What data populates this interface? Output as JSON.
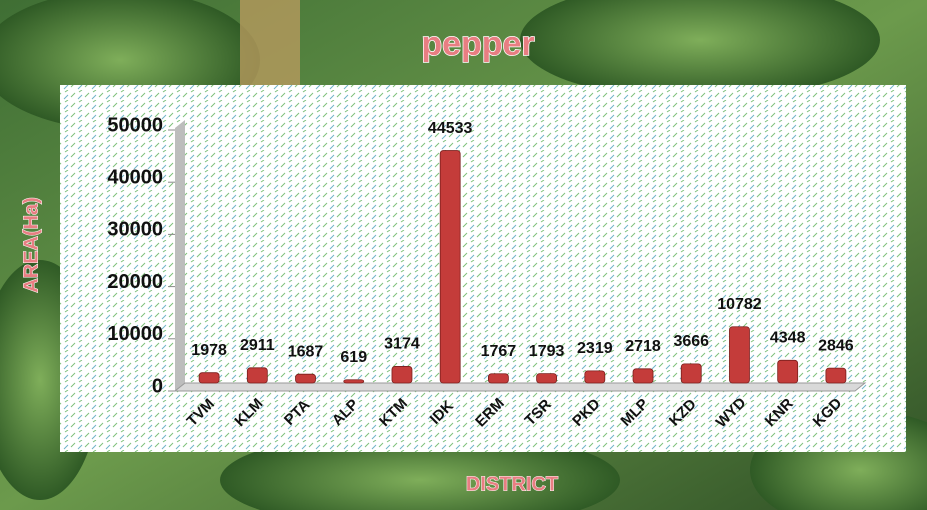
{
  "chart_data": {
    "type": "bar",
    "title": "pepper",
    "x_label": "DISTRICT",
    "y_label": "AREA(Ha)",
    "categories": [
      "TVM",
      "KLM",
      "PTA",
      "ALP",
      "KTM",
      "IDK",
      "ERM",
      "TSR",
      "PKD",
      "MLP",
      "KZD",
      "WYD",
      "KNR",
      "KGD"
    ],
    "values": [
      1978,
      2911,
      1687,
      619,
      3174,
      44533,
      1767,
      1793,
      2319,
      2718,
      3666,
      10782,
      4348,
      2846
    ],
    "color": "#c43c3a",
    "ylim": [
      0,
      50000
    ],
    "yticks": [
      0,
      10000,
      20000,
      30000,
      40000,
      50000
    ],
    "grid": false
  }
}
